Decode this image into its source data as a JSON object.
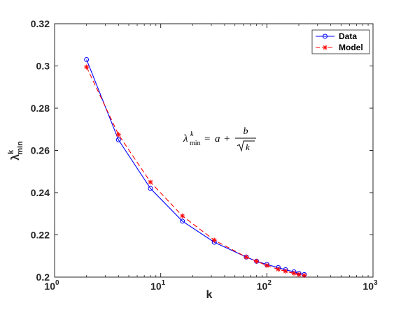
{
  "chart_data": {
    "type": "line",
    "xscale": "log",
    "xlim": [
      1,
      1000
    ],
    "ylim": [
      0.2,
      0.32
    ],
    "xlabel": "k",
    "ylabel": {
      "base": "λ",
      "sup": "k",
      "sub": "min"
    },
    "x_ticks": [
      {
        "value": 1,
        "base": "10",
        "exp": "0"
      },
      {
        "value": 10,
        "base": "10",
        "exp": "1"
      },
      {
        "value": 100,
        "base": "10",
        "exp": "2"
      },
      {
        "value": 1000,
        "base": "10",
        "exp": "3"
      }
    ],
    "y_ticks": [
      {
        "value": 0.2,
        "label": "0.2"
      },
      {
        "value": 0.22,
        "label": "0.22"
      },
      {
        "value": 0.24,
        "label": "0.24"
      },
      {
        "value": 0.26,
        "label": "0.26"
      },
      {
        "value": 0.28,
        "label": "0.28"
      },
      {
        "value": 0.3,
        "label": "0.3"
      },
      {
        "value": 0.32,
        "label": "0.32"
      }
    ],
    "x": [
      2,
      4,
      8,
      16,
      32,
      64,
      80,
      100,
      128,
      150,
      180,
      200,
      225
    ],
    "series": [
      {
        "name": "Data",
        "color": "#0000ff",
        "line": "solid",
        "marker": "circle",
        "values": [
          0.303,
          0.265,
          0.242,
          0.2265,
          0.2165,
          0.2095,
          0.2075,
          0.206,
          0.2045,
          0.2035,
          0.2025,
          0.2018,
          0.2012
        ]
      },
      {
        "name": "Model",
        "color": "#ff0000",
        "line": "dashed",
        "marker": "star",
        "values": [
          0.2995,
          0.2675,
          0.245,
          0.229,
          0.2175,
          0.2095,
          0.2075,
          0.2055,
          0.2037,
          0.2028,
          0.2018,
          0.2012,
          0.2008
        ]
      }
    ],
    "legend_position": "top-right",
    "annotation": {
      "lhs_base": "λ",
      "lhs_sup": "k",
      "lhs_sub": "min",
      "equals": "=",
      "a": "a",
      "plus": "+",
      "numerator": "b",
      "radicand": "k"
    }
  }
}
